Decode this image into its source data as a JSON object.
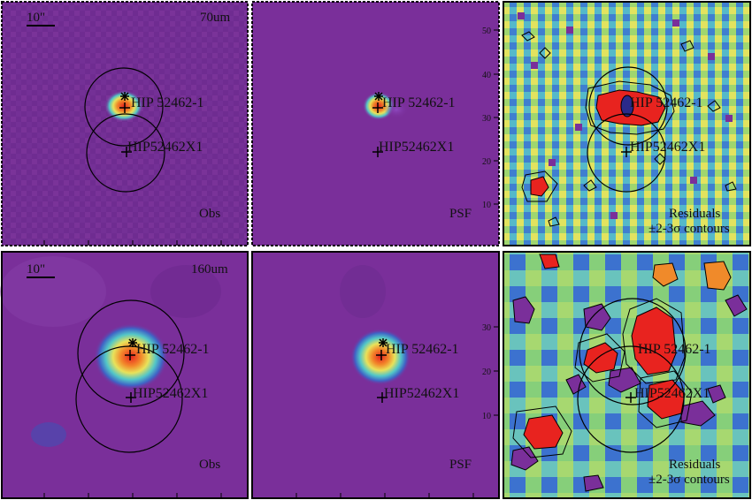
{
  "colors": {
    "background_purple": "#7a2f9a",
    "hot_red": "#e8231f",
    "warm_orange": "#f79a2e",
    "yellow": "#f2e45a",
    "cyan": "#4fc7c9",
    "blue": "#3a6fd1",
    "green": "#8fd26a",
    "frame": "#000000"
  },
  "panels": [
    {
      "id": "obs70",
      "corner_label": "70um",
      "scale_label": "10\"",
      "bottom_label": "Obs",
      "src1": "HIP 52462-1",
      "src2": "HIP52462X1"
    },
    {
      "id": "psf70",
      "bottom_label": "PSF",
      "src1": "HIP 52462-1",
      "src2": "HIP52462X1"
    },
    {
      "id": "res70",
      "bottom_label_1": "Residuals",
      "bottom_label_2": "±2-3σ contours",
      "src1": "HIP 52462-1",
      "src2": "HIP52462X1"
    },
    {
      "id": "obs160",
      "corner_label": "160um",
      "scale_label": "10\"",
      "bottom_label": "Obs",
      "src1": "HIP 52462-1",
      "src2": "HIP52462X1"
    },
    {
      "id": "psf160",
      "bottom_label": "PSF",
      "src1": "HIP 52462-1",
      "src2": "HIP52462X1"
    },
    {
      "id": "res160",
      "bottom_label_1": "Residuals",
      "bottom_label_2": "±2-3σ contours",
      "src1": "HIP 52462-1",
      "src2": "HIP52462X1"
    }
  ],
  "axis_ticks_top_row": [
    "50",
    "40",
    "30",
    "20",
    "10"
  ],
  "axis_ticks_bottom_row": [
    "30",
    "20",
    "10"
  ]
}
